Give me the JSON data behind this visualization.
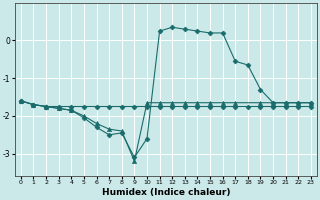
{
  "xlabel": "Humidex (Indice chaleur)",
  "background_color": "#cce9e9",
  "grid_color": "#ffffff",
  "line_color": "#1a6b6b",
  "xlim": [
    -0.5,
    23.5
  ],
  "ylim": [
    -3.6,
    1.0
  ],
  "xticks": [
    0,
    1,
    2,
    3,
    4,
    5,
    6,
    7,
    8,
    9,
    10,
    11,
    12,
    13,
    14,
    15,
    16,
    17,
    18,
    19,
    20,
    21,
    22,
    23
  ],
  "yticks": [
    -3,
    -2,
    -1,
    0
  ],
  "series": [
    {
      "x": [
        0,
        1,
        2,
        3,
        4,
        5,
        6,
        7,
        8,
        9,
        10,
        11,
        12,
        13,
        14,
        15,
        16,
        17,
        18,
        19,
        20,
        21,
        22,
        23
      ],
      "y": [
        -1.6,
        -1.7,
        -1.75,
        -1.75,
        -1.75,
        -1.75,
        -1.75,
        -1.75,
        -1.75,
        -1.75,
        -1.75,
        -1.75,
        -1.75,
        -1.75,
        -1.75,
        -1.75,
        -1.75,
        -1.75,
        -1.75,
        -1.75,
        -1.75,
        -1.75,
        -1.75,
        -1.75
      ],
      "marker": "D",
      "markersize": 2.5,
      "linestyle": "-"
    },
    {
      "x": [
        0,
        1,
        2,
        3,
        4,
        5,
        6,
        7,
        8,
        9,
        10,
        11,
        12,
        13,
        14,
        15,
        16,
        17,
        19,
        20,
        21,
        22,
        23
      ],
      "y": [
        -1.6,
        -1.7,
        -1.75,
        -1.8,
        -1.85,
        -2.0,
        -2.2,
        -2.35,
        -2.4,
        -3.2,
        -1.65,
        -1.65,
        -1.65,
        -1.65,
        -1.65,
        -1.65,
        -1.65,
        -1.65,
        -1.65,
        -1.65,
        -1.65,
        -1.65,
        -1.65
      ],
      "marker": "^",
      "markersize": 3,
      "linestyle": "-"
    },
    {
      "x": [
        0,
        1,
        2,
        3,
        4,
        5,
        6,
        7,
        8,
        9,
        10,
        11,
        12,
        13,
        14,
        15,
        16,
        17,
        18,
        19,
        20,
        21,
        22,
        23
      ],
      "y": [
        -1.6,
        -1.7,
        -1.75,
        -1.8,
        -1.85,
        -2.05,
        -2.3,
        -2.5,
        -2.45,
        -3.1,
        -2.6,
        0.25,
        0.35,
        0.3,
        0.25,
        0.2,
        0.2,
        -0.55,
        -0.65,
        -1.3,
        -1.65,
        -1.65,
        -1.65,
        -1.65
      ],
      "marker": "D",
      "markersize": 2.5,
      "linestyle": "-"
    }
  ]
}
